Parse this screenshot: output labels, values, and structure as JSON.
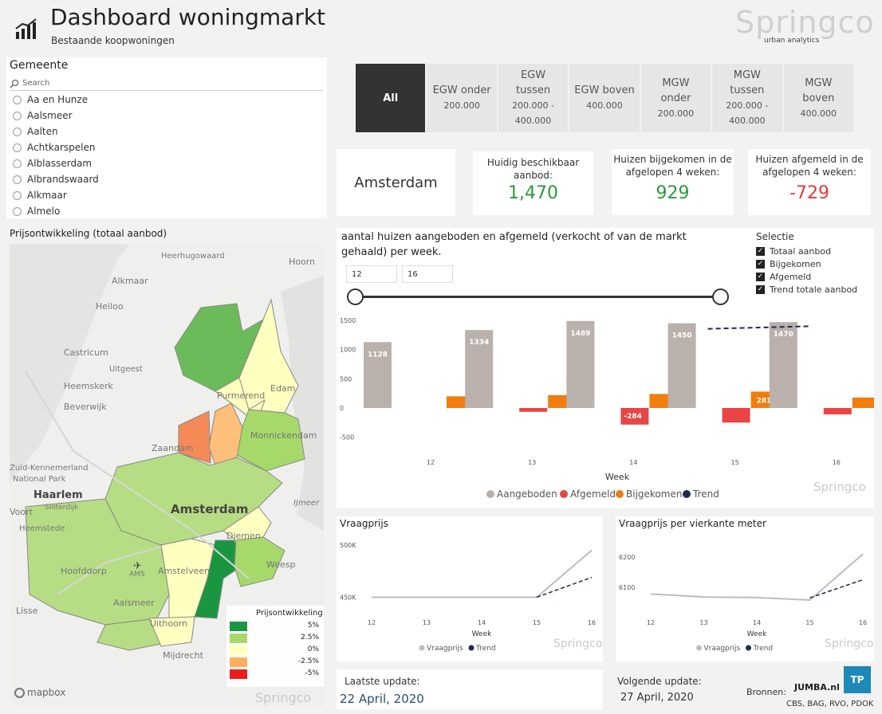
{
  "header": {
    "title": "Dashboard woningmarkt",
    "subtitle": "Bestaande koopwoningen",
    "logo_text": "Springco",
    "logo_sub": "urban analytics"
  },
  "gemeente": {
    "title": "Gemeente",
    "search_placeholder": "Search",
    "items": [
      "Aa en Hunze",
      "Aalsmeer",
      "Aalten",
      "Achtkarspelen",
      "Alblasserdam",
      "Albrandswaard",
      "Alkmaar",
      "Almelo"
    ]
  },
  "tabs": [
    {
      "l1": "All",
      "l2": "",
      "l3": ""
    },
    {
      "l1": "EGW onder",
      "l2": "200.000",
      "l3": ""
    },
    {
      "l1": "EGW",
      "l2": "tussen",
      "l3": "200.000 -",
      "l4": "400.000"
    },
    {
      "l1": "EGW boven",
      "l2": "400.000",
      "l3": ""
    },
    {
      "l1": "MGW",
      "l2": "onder",
      "l3": "200.000"
    },
    {
      "l1": "MGW",
      "l2": "tussen",
      "l3": "200.000 -",
      "l4": "400.000"
    },
    {
      "l1": "MGW",
      "l2": "boven",
      "l3": "400.000"
    }
  ],
  "kpi": {
    "city": "Amsterdam",
    "available_title_1": "Huidig beschikbaar",
    "available_title_2": "aanbod:",
    "available_value": "1,470",
    "added_title_1": "Huizen bijgekomen in de",
    "added_title_2": "afgelopen 4 weken:",
    "added_value": "929",
    "removed_title_1": "Huizen afgemeld in de",
    "removed_title_2": "afgelopen 4 weken:",
    "removed_value": "-729"
  },
  "map": {
    "title": "Prijsontwikkeling (totaal aanbod)",
    "places": [
      "Heerhugowaard",
      "Hoorn",
      "Alkmaar",
      "Heiloo",
      "Castricum",
      "Uitgeest",
      "Heemskerk",
      "Beverwijk",
      "Purmerend",
      "Edam",
      "Monnickendam",
      "Zaandam",
      "Zuid-Kennemerland",
      "National Park",
      "Haarlem",
      "Amsterdam",
      "Diemen",
      "IJmeer",
      "Weesp",
      "Heemstede",
      "Hoofddorp",
      "AMS",
      "Amstelveen",
      "Aalsmeer",
      "Lisse",
      "Uithoorn",
      "Mijdrecht",
      "Voort",
      "Sloterdijk"
    ],
    "legend_title": "Prijsontwikkeling",
    "legend": [
      {
        "label": "5%",
        "color": "#1a9641"
      },
      {
        "label": "2.5%",
        "color": "#a6d96a"
      },
      {
        "label": "0%",
        "color": "#ffffbf"
      },
      {
        "label": "-2.5%",
        "color": "#fdae61"
      },
      {
        "label": "-5%",
        "color": "#ee1c1c"
      }
    ],
    "mapbox": "mapbox",
    "logo_text": "Springco"
  },
  "weekly": {
    "title_1": "aantal huizen aangeboden en afgemeld (verkocht of van de markt",
    "title_2": "gehaald) per week.",
    "range_from": "12",
    "range_to": "16",
    "selectie_title": "Selectie",
    "selectie": [
      "Totaal aanbod",
      "Bijgekomen",
      "Afgemeld",
      "Trend totale aanbod"
    ],
    "check_mark": "✓",
    "logo_text": "Springco"
  },
  "vraagprijs": {
    "title": "Vraagprijs",
    "logo_text": "Springco"
  },
  "vraagprijs_m2": {
    "title": "Vraagprijs per vierkante meter",
    "logo_text": "Springco"
  },
  "footer": {
    "last_label": "Laatste update:",
    "last_value": "22 April, 2020",
    "next_label": "Volgende update:",
    "next_value": "27 April, 2020",
    "sources_label": "Bronnen:",
    "sources_value": "CBS, BAG, RVO, PDOK",
    "jumba": "JUMBA.nl",
    "tp": "TP"
  },
  "chart_data": [
    {
      "type": "bar",
      "categories": [
        "12",
        "13",
        "14",
        "15",
        "16"
      ],
      "xlabel": "Week",
      "ylim": [
        -500,
        1500
      ],
      "yticks": [
        -500,
        0,
        500,
        1000,
        1500
      ],
      "series": [
        {
          "name": "Aangeboden",
          "color": "#bab0ac",
          "values": [
            1128,
            1334,
            1489,
            1450,
            1470
          ],
          "labels": [
            "1128",
            "1334",
            "1489",
            "1450",
            "1470"
          ]
        },
        {
          "name": "Afgemeld",
          "color": "#e84545",
          "values": [
            0,
            -65,
            -284,
            -250,
            -110
          ],
          "labels": [
            "",
            "",
            "-284",
            "",
            ""
          ]
        },
        {
          "name": "Bijgekomen",
          "color": "#f07d0e",
          "values": [
            200,
            220,
            240,
            281,
            180
          ],
          "labels": [
            "",
            "",
            "",
            "281",
            ""
          ]
        },
        {
          "name": "Trend",
          "color": "#1f2a57",
          "x": [
            "15",
            "16"
          ],
          "values": [
            1355,
            1400
          ]
        }
      ],
      "grid": false,
      "legend": "bottom"
    },
    {
      "type": "line",
      "title": "Vraagprijs",
      "x": [
        "12",
        "13",
        "14",
        "15",
        "16"
      ],
      "xlabel": "Week",
      "yticks": [
        "450K",
        "500K"
      ],
      "ytick_values": [
        450000,
        500000
      ],
      "ylim": [
        445000,
        503000
      ],
      "series": [
        {
          "name": "Vraagprijs",
          "color": "#bdbdbd",
          "values": [
            450000,
            450000,
            450000,
            450000,
            495000
          ]
        },
        {
          "name": "Trend",
          "color": "#1f2a57",
          "x": [
            "15",
            "16"
          ],
          "values": [
            450000,
            469000
          ]
        }
      ],
      "legend": "bottom"
    },
    {
      "type": "line",
      "title": "Vraagprijs per vierkante meter",
      "x": [
        "12",
        "13",
        "14",
        "15",
        "16"
      ],
      "xlabel": "Week",
      "yticks": [
        "6100",
        "6200"
      ],
      "ytick_values": [
        6100,
        6200
      ],
      "ylim": [
        6050,
        6250
      ],
      "series": [
        {
          "name": "Vraagprijs",
          "color": "#bdbdbd",
          "values": [
            6078,
            6068,
            6066,
            6058,
            6210
          ]
        },
        {
          "name": "Trend",
          "color": "#1f2a57",
          "x": [
            "15",
            "16"
          ],
          "values": [
            6065,
            6125
          ]
        }
      ],
      "legend": "bottom"
    }
  ]
}
